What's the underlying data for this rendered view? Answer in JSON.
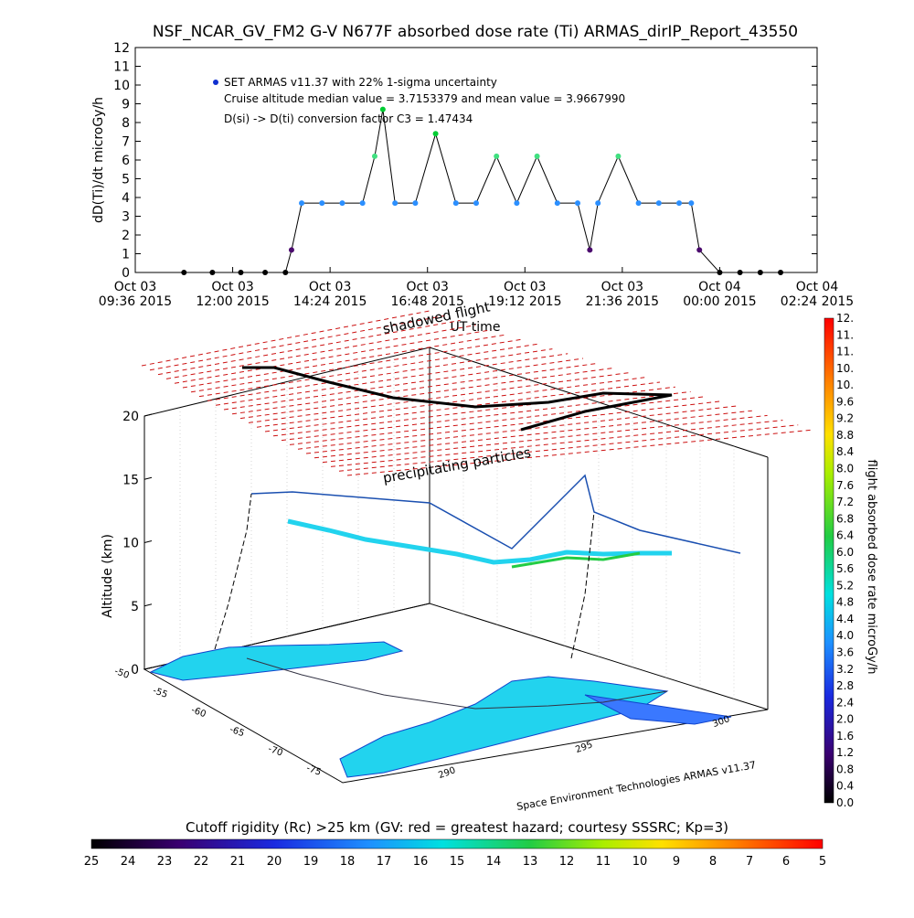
{
  "title": "NSF_NCAR_GV_FM2 G-V     N677F  absorbed dose rate (Ti) ARMAS_dirIP_Report_43550",
  "chart_data": [
    {
      "type": "scatter",
      "ylabel": "dD(Ti)/dt microGy/h",
      "xlabel": "UT time",
      "ylim": [
        0,
        12
      ],
      "yticks": [
        "0",
        "1",
        "2",
        "3",
        "4",
        "5",
        "6",
        "7",
        "8",
        "9",
        "10",
        "11",
        "12"
      ],
      "xticks": [
        {
          "line1": "Oct 03",
          "line2": "09:36 2015"
        },
        {
          "line1": "Oct 03",
          "line2": "12:00 2015"
        },
        {
          "line1": "Oct 03",
          "line2": "14:24 2015"
        },
        {
          "line1": "Oct 03",
          "line2": "16:48 2015"
        },
        {
          "line1": "Oct 03",
          "line2": "19:12 2015"
        },
        {
          "line1": "Oct 03",
          "line2": "21:36 2015"
        },
        {
          "line1": "Oct 04",
          "line2": "00:00 2015"
        },
        {
          "line1": "Oct 04",
          "line2": "02:24 2015"
        }
      ],
      "annotations": [
        "SET ARMAS v11.37 with 22% 1-sigma uncertainty",
        "Cruise altitude median value = 3.7153379 and mean value = 3.9667990",
        "D(si) -> D(ti) conversion factor C3 = 1.47434"
      ],
      "series": [
        {
          "name": "SET ARMAS v11.37 with 22% 1-sigma uncertainty",
          "x_hours": [
            10.8,
            11.5,
            12.2,
            12.8,
            13.3,
            13.45,
            13.7,
            14.2,
            14.7,
            15.2,
            15.5,
            15.7,
            16.0,
            16.5,
            17.0,
            17.5,
            18.0,
            18.5,
            19.0,
            19.5,
            20.0,
            20.5,
            20.8,
            21.0,
            21.5,
            22.0,
            22.5,
            23.0,
            23.3,
            23.5,
            24.0,
            24.5,
            25.0,
            25.5
          ],
          "values": [
            0,
            0,
            0,
            0,
            0,
            1.2,
            3.7,
            3.7,
            3.7,
            3.7,
            6.2,
            8.7,
            3.7,
            3.7,
            7.4,
            3.7,
            3.7,
            6.2,
            3.7,
            6.2,
            3.7,
            3.7,
            1.2,
            3.7,
            6.2,
            3.7,
            3.7,
            3.7,
            3.7,
            1.2,
            0,
            0,
            0,
            0
          ]
        }
      ]
    },
    {
      "type": "scatter",
      "title_3d": "shadowed flight",
      "zlabel": "Altitude (km)",
      "zticks": [
        "0",
        "5",
        "10",
        "15",
        "20"
      ],
      "lat_ticks": [
        "-50",
        "-55",
        "-60",
        "-65",
        "-70",
        "-75"
      ],
      "lon_ticks": [
        "290",
        "295",
        "300"
      ],
      "annotations": [
        "precipitating particles",
        "Space Environment Technologies ARMAS v11.37"
      ],
      "colorbar_label": "flight absorbed dose rate microGy/h",
      "colorbar_ticks": [
        "0.0",
        "0.4",
        "0.8",
        "1.2",
        "1.6",
        "2.0",
        "2.4",
        "2.8",
        "3.2",
        "3.6",
        "4.0",
        "4.4",
        "4.8",
        "5.2",
        "5.6",
        "6.0",
        "6.4",
        "6.8",
        "7.2",
        "7.6",
        "8.0",
        "8.4",
        "8.8",
        "9.2",
        "9.6",
        "10.",
        "10.",
        "11.",
        "11.",
        "12."
      ]
    },
    {
      "type": "heatmap",
      "caption": "Cutoff rigidity (Rc) >25 km (GV: red = greatest hazard; courtesy SSSRC; Kp=3)",
      "ticks": [
        "25",
        "24",
        "23",
        "22",
        "21",
        "20",
        "19",
        "18",
        "17",
        "16",
        "15",
        "14",
        "13",
        "12",
        "11",
        "10",
        "9",
        "8",
        "7",
        "6",
        "5"
      ]
    }
  ]
}
